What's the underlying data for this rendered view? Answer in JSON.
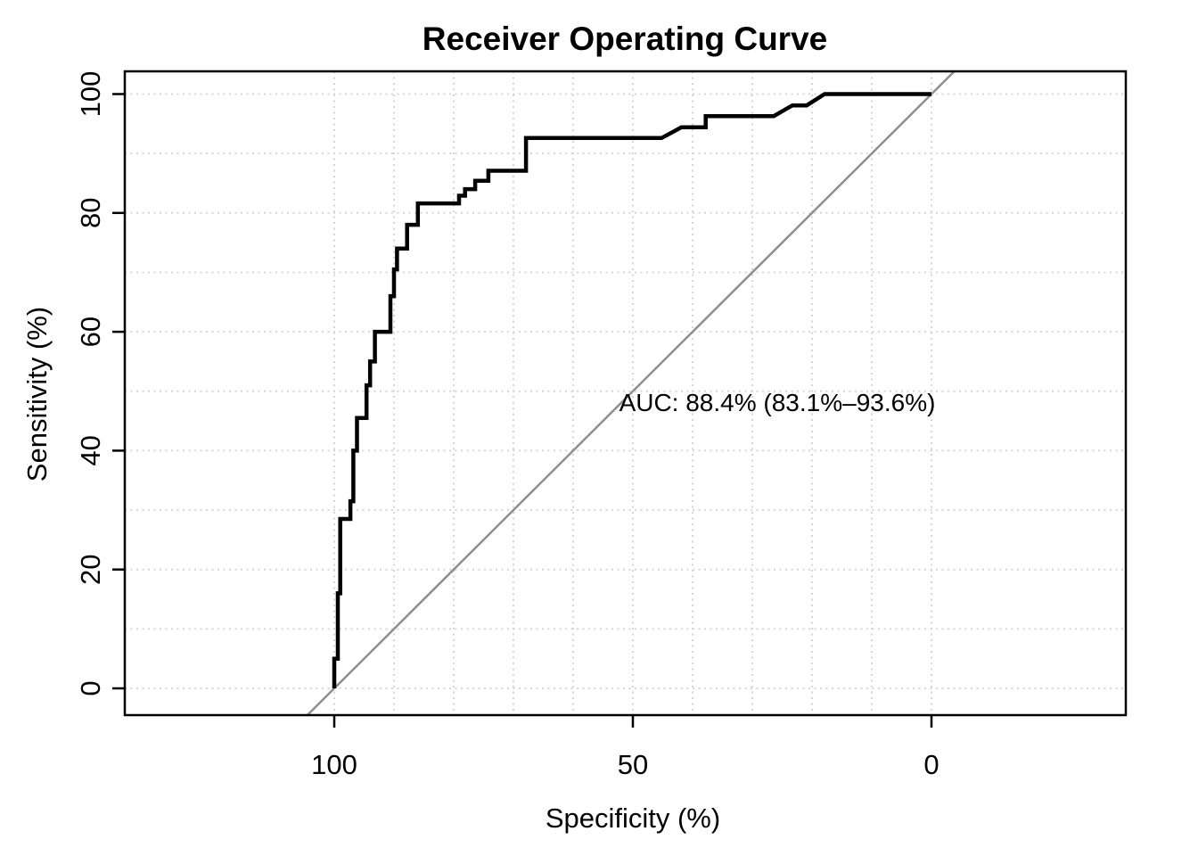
{
  "chart_data": {
    "type": "line",
    "title": "Receiver Operating Curve",
    "xlabel": "Specificity (%)",
    "ylabel": "Sensitivity (%)",
    "x_axis": {
      "min": 0,
      "max": 100,
      "reversed": true,
      "ticks": [
        {
          "value": 100,
          "label": "100"
        },
        {
          "value": 50,
          "label": "50"
        },
        {
          "value": 0,
          "label": "0"
        }
      ]
    },
    "y_axis": {
      "min": 0,
      "max": 100,
      "ticks": [
        {
          "value": 0,
          "label": "0"
        },
        {
          "value": 20,
          "label": "20"
        },
        {
          "value": 40,
          "label": "40"
        },
        {
          "value": 60,
          "label": "60"
        },
        {
          "value": 80,
          "label": "80"
        },
        {
          "value": 100,
          "label": "100"
        }
      ]
    },
    "grid": {
      "on": true,
      "step": 10,
      "style": "dotted",
      "color": "#d6d6d6"
    },
    "annotation": {
      "text": "AUC: 88.4% (83.1%–93.6%)",
      "auc": "88.4%",
      "ci_low": "83.1%",
      "ci_high": "93.6%"
    },
    "reference_line": {
      "name": "chance-line",
      "color": "#8f8f8f",
      "from": [
        100,
        0
      ],
      "to": [
        0,
        100
      ]
    },
    "series": [
      {
        "name": "ROC curve",
        "color": "#000000",
        "points": [
          [
            100,
            0
          ],
          [
            100,
            5
          ],
          [
            99.4,
            5
          ],
          [
            99.4,
            16
          ],
          [
            99,
            16
          ],
          [
            99,
            28.5
          ],
          [
            97.3,
            28.5
          ],
          [
            97.3,
            31.5
          ],
          [
            96.8,
            31.5
          ],
          [
            96.8,
            40
          ],
          [
            96.2,
            40
          ],
          [
            96.2,
            45.5
          ],
          [
            94.6,
            45.5
          ],
          [
            94.6,
            51
          ],
          [
            94,
            51
          ],
          [
            94,
            55
          ],
          [
            93.2,
            55
          ],
          [
            93.2,
            60
          ],
          [
            90.6,
            60
          ],
          [
            90.6,
            66
          ],
          [
            90,
            66
          ],
          [
            90,
            70.5
          ],
          [
            89.5,
            70.5
          ],
          [
            89.5,
            74
          ],
          [
            87.8,
            74
          ],
          [
            87.8,
            78
          ],
          [
            86,
            78
          ],
          [
            86,
            81.6
          ],
          [
            79.1,
            81.6
          ],
          [
            79.1,
            82.9
          ],
          [
            78.1,
            82.9
          ],
          [
            78.1,
            84
          ],
          [
            76.4,
            84
          ],
          [
            76.4,
            85.4
          ],
          [
            74.2,
            85.4
          ],
          [
            74.2,
            87.1
          ],
          [
            67.9,
            87.1
          ],
          [
            67.9,
            92.6
          ],
          [
            45.2,
            92.6
          ],
          [
            41.9,
            94.4
          ],
          [
            37.8,
            94.4
          ],
          [
            37.8,
            96.3
          ],
          [
            26.4,
            96.3
          ],
          [
            23.3,
            98.1
          ],
          [
            20.9,
            98.1
          ],
          [
            17.9,
            100
          ],
          [
            0,
            100
          ]
        ]
      }
    ]
  }
}
